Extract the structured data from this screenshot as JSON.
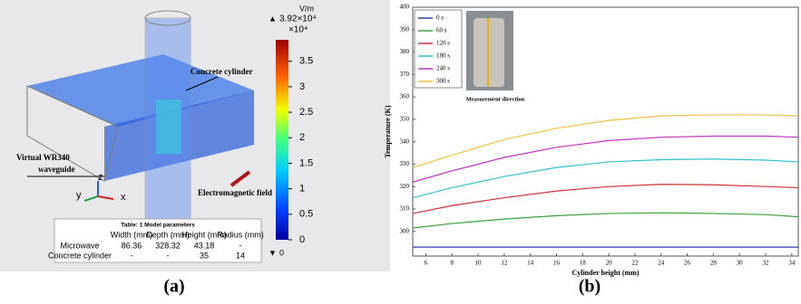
{
  "panel_a": {
    "labels": {
      "concrete": "Concrete cylinder",
      "waveguide_1": "Virtual WR340",
      "waveguide_2": "waveguide",
      "field": "Electromagnetic field",
      "axis_y": "y",
      "axis_z": "z",
      "axis_x": "x"
    },
    "colorbar": {
      "unit": "V/m",
      "max_label": "3.92×10⁴",
      "multiplier": "×10⁴",
      "min_label": "0",
      "lim": [
        0,
        3.92
      ],
      "ticks": [
        0,
        0.5,
        1,
        1.5,
        2,
        2.5,
        3,
        3.5
      ]
    },
    "table": {
      "title": "Table: 1  Model parameters",
      "header": [
        "Width (mm)",
        "Depth (mm)",
        "Height (mm)",
        "Radius (mm)"
      ],
      "rows": [
        [
          "Microwave",
          "86.36",
          "328.32",
          "43.18",
          "-"
        ],
        [
          "Concrete cylinder",
          "-",
          "-",
          "35",
          "14"
        ]
      ]
    },
    "caption": "(a)"
  },
  "chart_data": {
    "type": "line",
    "xlabel": "Cylinder height (mm)",
    "ylabel": "Temperature (K)",
    "inset_caption": "Measurement direction",
    "caption": "(b)",
    "x": [
      5,
      8,
      12,
      16,
      20,
      24,
      28,
      32,
      34.5
    ],
    "xlim": [
      5,
      34.5
    ],
    "xticks": [
      6,
      8,
      10,
      12,
      14,
      16,
      18,
      20,
      22,
      24,
      26,
      28,
      30,
      32,
      34
    ],
    "ylim": [
      289,
      400
    ],
    "yticks": [
      300,
      310,
      320,
      330,
      340,
      350,
      360,
      370,
      380,
      390,
      400
    ],
    "series": [
      {
        "name": "0 s",
        "color": "#2a3cb0",
        "values": [
          293,
          293,
          293,
          293,
          293,
          293,
          293,
          293,
          293
        ]
      },
      {
        "name": "60 s",
        "color": "#3aa03a",
        "values": [
          301.5,
          303.5,
          305.5,
          307,
          308,
          308.3,
          308,
          307.5,
          306.5
        ]
      },
      {
        "name": "120 s",
        "color": "#d0303a",
        "values": [
          308,
          311.5,
          315,
          318,
          320,
          321,
          320.8,
          320,
          319.5
        ]
      },
      {
        "name": "180 s",
        "color": "#30c0d0",
        "values": [
          315,
          319.5,
          324.5,
          328.5,
          331,
          332,
          332.3,
          331.8,
          331
        ]
      },
      {
        "name": "240 s",
        "color": "#c030c0",
        "values": [
          322,
          327,
          333,
          337.5,
          340.5,
          342,
          342.5,
          342.5,
          342
        ]
      },
      {
        "name": "300 s",
        "color": "#f0c040",
        "values": [
          328.5,
          334,
          341,
          346,
          349.5,
          351.5,
          352,
          352,
          351.5
        ]
      }
    ]
  }
}
